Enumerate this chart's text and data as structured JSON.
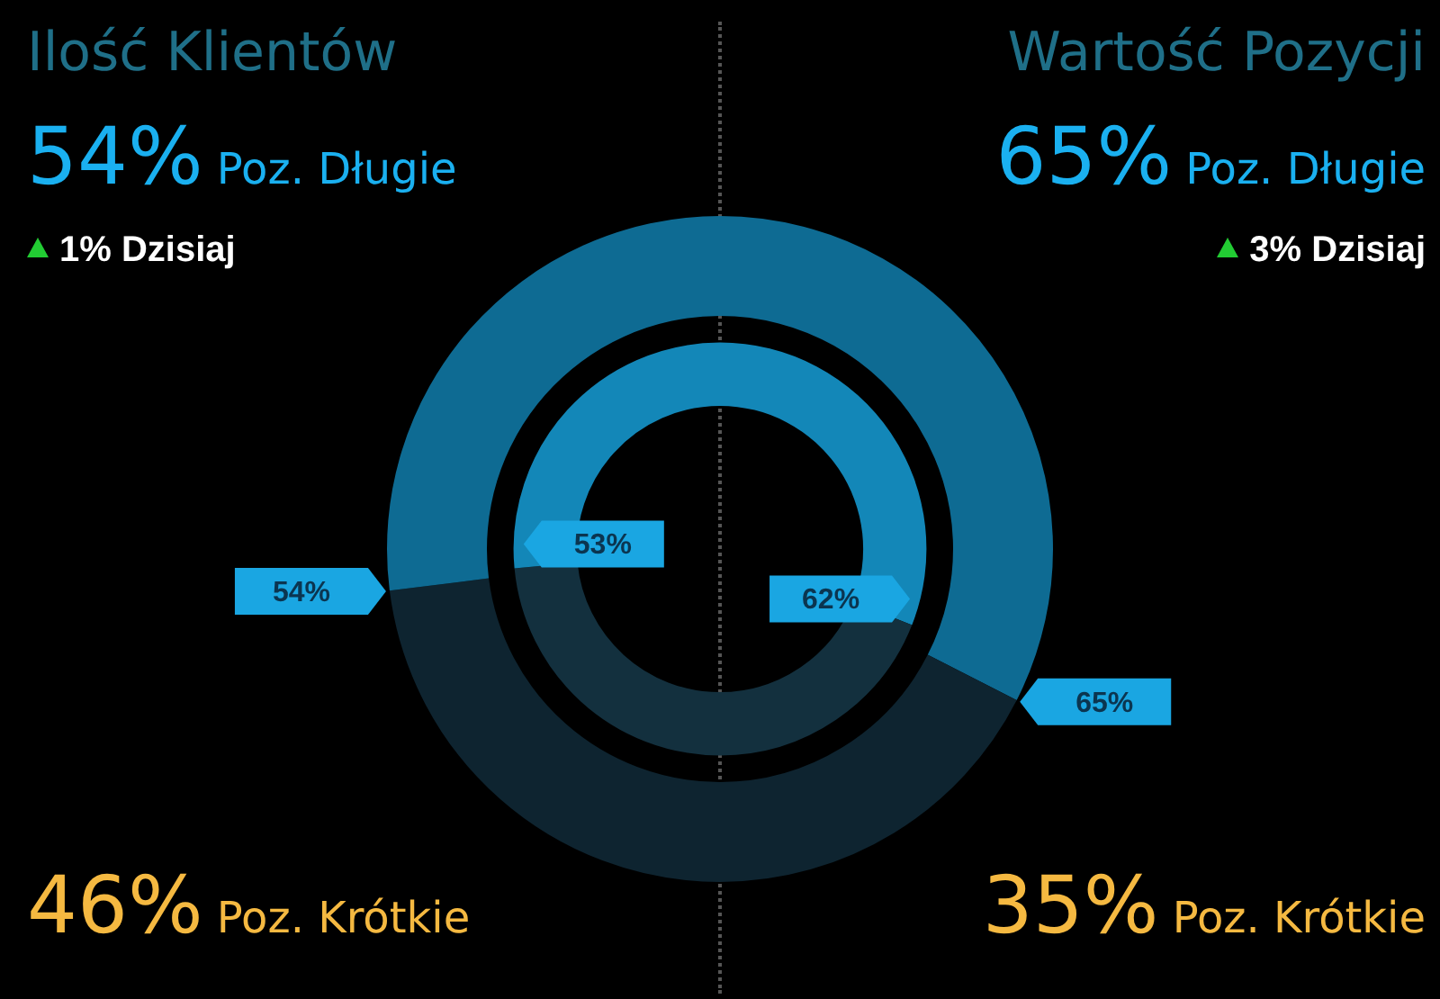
{
  "chart_data": [
    {
      "type": "donut",
      "title": "Ilość Klientów",
      "categories": [
        "Poz. Długie",
        "Poz. Krótkie"
      ],
      "series": [
        {
          "values": [
            54,
            46
          ],
          "colors": [
            "#0e6b93",
            "#0e2430"
          ],
          "value_labels": [
            "54%",
            "46%"
          ]
        },
        {
          "values": [
            53,
            47
          ],
          "colors": [
            "#1387b8",
            "#13303e"
          ],
          "value_labels": [
            "53%",
            null
          ]
        }
      ],
      "annotations": [
        "1% Dzisiaj"
      ]
    },
    {
      "type": "donut",
      "title": "Wartość Pozycji",
      "categories": [
        "Poz. Długie",
        "Poz. Krótkie"
      ],
      "series": [
        {
          "values": [
            65,
            35
          ],
          "colors": [
            "#0e6b93",
            "#0e2430"
          ],
          "value_labels": [
            "65%",
            "35%"
          ]
        },
        {
          "values": [
            62,
            38
          ],
          "colors": [
            "#1387b8",
            "#13303e"
          ],
          "value_labels": [
            "62%",
            null
          ]
        }
      ],
      "annotations": [
        "3% Dzisiaj"
      ]
    }
  ]
}
